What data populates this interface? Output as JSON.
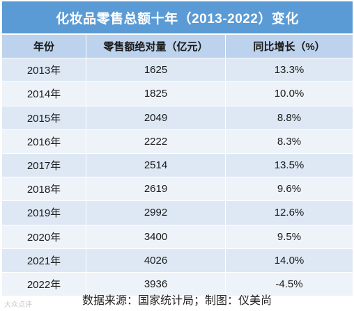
{
  "title": "化妆品零售总额十年（2013-2022）变化",
  "headers": [
    "年份",
    "零售额绝对量（亿元）",
    "同比增长（%）"
  ],
  "rows": [
    {
      "year": "2013年",
      "sales": "1625",
      "growth": "13.3%"
    },
    {
      "year": "2014年",
      "sales": "1825",
      "growth": "10.0%"
    },
    {
      "year": "2015年",
      "sales": "2049",
      "growth": "8.8%"
    },
    {
      "year": "2016年",
      "sales": "2222",
      "growth": "8.3%"
    },
    {
      "year": "2017年",
      "sales": "2514",
      "growth": "13.5%"
    },
    {
      "year": "2018年",
      "sales": "2619",
      "growth": "9.6%"
    },
    {
      "year": "2019年",
      "sales": "2992",
      "growth": "12.6%"
    },
    {
      "year": "2020年",
      "sales": "3400",
      "growth": "9.5%"
    },
    {
      "year": "2021年",
      "sales": "4026",
      "growth": "14.0%"
    },
    {
      "year": "2022年",
      "sales": "3936",
      "growth": "-4.5%"
    }
  ],
  "footer": "数据来源：国家统计局；制图：仪美尚",
  "watermark": "大众点评",
  "colors": {
    "title_bg": "#5b9bd5",
    "header_bg": "#bdd2ec",
    "row_odd": "#dde8f4",
    "row_even": "#eef3f9"
  }
}
